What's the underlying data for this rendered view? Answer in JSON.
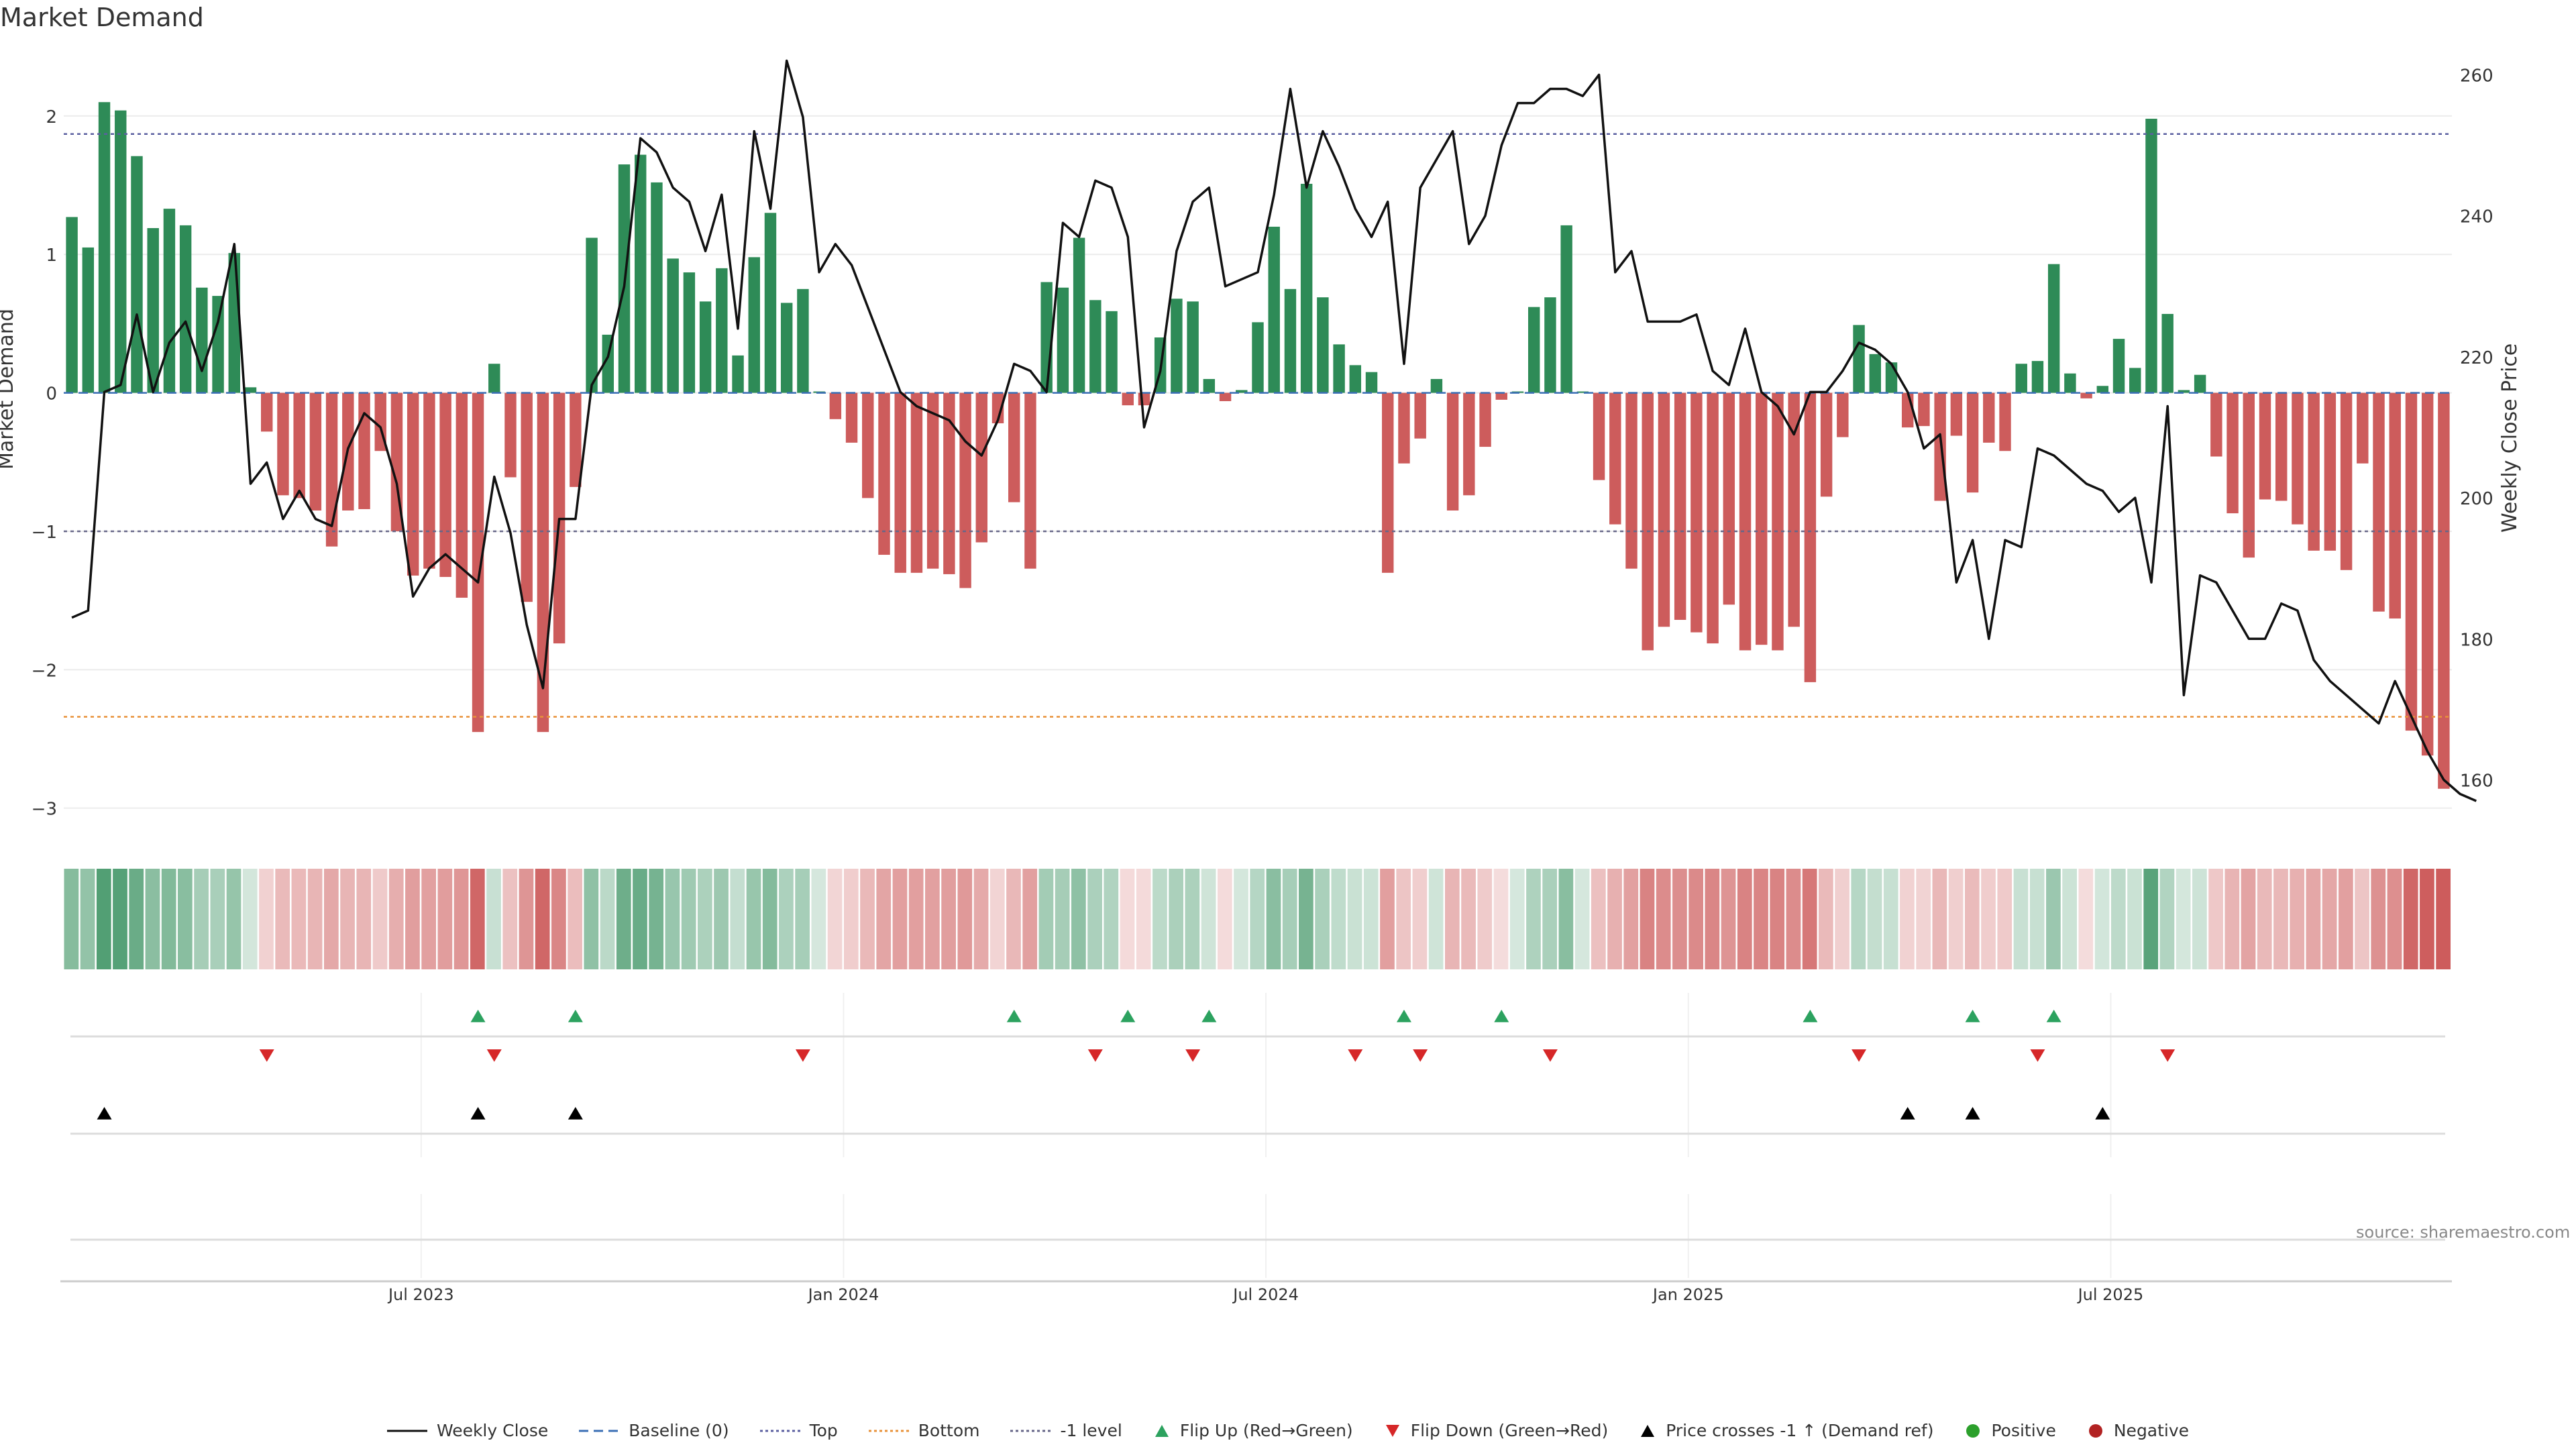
{
  "chart_data": {
    "type": "bar",
    "title": "Market Demand",
    "ylabel": "Market Demand",
    "ylabel_right": "Weekly Close Price",
    "ylim": [
      -3.05,
      2.45
    ],
    "ylim_right": [
      155,
      263
    ],
    "yticks": [
      2,
      1,
      0,
      -1,
      -2,
      -3
    ],
    "yticks_right": [
      260,
      240,
      220,
      200,
      180,
      160
    ],
    "reference_lines": {
      "top": 1.87,
      "bottom": -2.34,
      "minus_one": -1.0,
      "baseline": 0
    },
    "x_tick_labels": [
      "Jul 2023",
      "Jan 2024",
      "Jul 2024",
      "Jan 2025",
      "Jul 2025"
    ],
    "x_tick_positions": [
      22,
      48,
      74,
      100,
      126
    ],
    "colors": {
      "positive": "#2e8b57",
      "negative": "#cd5c5c",
      "price": "#111111",
      "top": "#5b5fa0",
      "bottom": "#e8923a",
      "flip_up": "#2ca25f",
      "flip_down": "#d62728",
      "cross": "#000000"
    },
    "series": [
      {
        "name": "Market Demand",
        "values": [
          1.27,
          1.05,
          2.1,
          2.04,
          1.71,
          1.19,
          1.33,
          1.21,
          0.76,
          0.7,
          1.01,
          0.04,
          -0.28,
          -0.74,
          -0.76,
          -0.85,
          -1.11,
          -0.85,
          -0.84,
          -0.42,
          -1.0,
          -1.32,
          -1.27,
          -1.33,
          -1.48,
          -2.45,
          0.21,
          -0.61,
          -1.51,
          -2.45,
          -1.81,
          -0.68,
          1.12,
          0.42,
          1.65,
          1.72,
          1.52,
          0.97,
          0.87,
          0.66,
          0.9,
          0.27,
          0.98,
          1.3,
          0.65,
          0.75,
          0.01,
          -0.19,
          -0.36,
          -0.76,
          -1.17,
          -1.3,
          -1.3,
          -1.27,
          -1.31,
          -1.41,
          -1.08,
          -0.22,
          -0.79,
          -1.27,
          0.8,
          0.76,
          1.12,
          0.67,
          0.59,
          -0.09,
          -0.09,
          0.4,
          0.68,
          0.66,
          0.1,
          -0.06,
          0.02,
          0.51,
          1.2,
          0.75,
          1.51,
          0.69,
          0.35,
          0.2,
          0.15,
          -1.3,
          -0.51,
          -0.33,
          0.1,
          -0.85,
          -0.74,
          -0.39,
          -0.05,
          0.01,
          0.62,
          0.69,
          1.21,
          0.01,
          -0.63,
          -0.95,
          -1.27,
          -1.86,
          -1.69,
          -1.64,
          -1.73,
          -1.81,
          -1.53,
          -1.86,
          -1.82,
          -1.86,
          -1.69,
          -2.09,
          -0.75,
          -0.32,
          0.49,
          0.28,
          0.22,
          -0.25,
          -0.24,
          -0.78,
          -0.31,
          -0.72,
          -0.36,
          -0.42,
          0.21,
          0.23,
          0.93,
          0.14,
          -0.04,
          0.05,
          0.39,
          0.18,
          1.98,
          0.57,
          0.02,
          0.13,
          -0.46,
          -0.87,
          -1.19,
          -0.77,
          -0.78,
          -0.95,
          -1.14,
          -1.14,
          -1.28,
          -0.51,
          -1.58,
          -1.63,
          -2.44,
          -2.62,
          -2.86
        ]
      },
      {
        "name": "Weekly Close",
        "values": [
          183,
          184,
          215,
          216,
          226,
          215,
          222,
          225,
          218,
          225,
          236,
          202,
          205,
          197,
          201,
          197,
          196,
          207,
          212,
          210,
          202,
          186,
          190,
          192,
          190,
          188,
          203,
          195,
          182,
          173,
          197,
          197,
          216,
          220,
          230,
          251,
          249,
          244,
          242,
          235,
          243,
          224,
          252,
          241,
          262,
          254,
          232,
          236,
          233,
          227,
          221,
          215,
          213,
          212,
          211,
          208,
          206,
          211,
          219,
          218,
          215,
          239,
          237,
          245,
          244,
          237,
          210,
          218,
          235,
          242,
          244,
          230,
          231,
          232,
          243,
          258,
          244,
          252,
          247,
          241,
          237,
          242,
          219,
          244,
          248,
          252,
          236,
          240,
          250,
          256,
          256,
          258,
          258,
          257,
          260,
          232,
          235,
          225,
          225,
          225,
          226,
          218,
          216,
          224,
          215,
          213,
          209,
          215,
          215,
          218,
          222,
          221,
          219,
          215,
          207,
          209,
          188,
          194,
          180,
          194,
          193,
          207,
          206,
          204,
          202,
          201,
          198,
          200,
          188,
          213,
          172,
          189,
          188,
          184,
          180,
          180,
          185,
          184,
          177,
          174,
          172,
          170,
          168,
          174,
          169,
          164,
          160,
          158,
          157
        ]
      }
    ],
    "markers": {
      "flip_up": [
        25,
        31,
        58,
        65,
        70,
        82,
        88,
        107,
        117,
        122
      ],
      "flip_down": [
        12,
        26,
        45,
        63,
        69,
        79,
        83,
        91,
        110,
        121,
        129
      ],
      "price_crosses": [
        2,
        25,
        31,
        113,
        117,
        125
      ]
    },
    "legend": [
      {
        "label": "Weekly Close",
        "kind": "line",
        "color": "#111111"
      },
      {
        "label": "Baseline (0)",
        "kind": "dashed",
        "color": "#3b6fb5"
      },
      {
        "label": "Top",
        "kind": "dotted",
        "color": "#5b5fa0"
      },
      {
        "label": "Bottom",
        "kind": "dotted",
        "color": "#e8923a"
      },
      {
        "label": "-1 level",
        "kind": "dotted",
        "color": "#666688"
      },
      {
        "label": "Flip Up (Red→Green)",
        "kind": "tri-up",
        "color": "#2ca25f"
      },
      {
        "label": "Flip Down (Green→Red)",
        "kind": "tri-down",
        "color": "#d62728"
      },
      {
        "label": "Price crosses -1 ↑ (Demand ref)",
        "kind": "tri-up",
        "color": "#000000"
      },
      {
        "label": "Positive",
        "kind": "dot",
        "color": "#2ca02c"
      },
      {
        "label": "Negative",
        "kind": "dot",
        "color": "#b22222"
      }
    ],
    "source": "source: sharemaestro.com"
  }
}
